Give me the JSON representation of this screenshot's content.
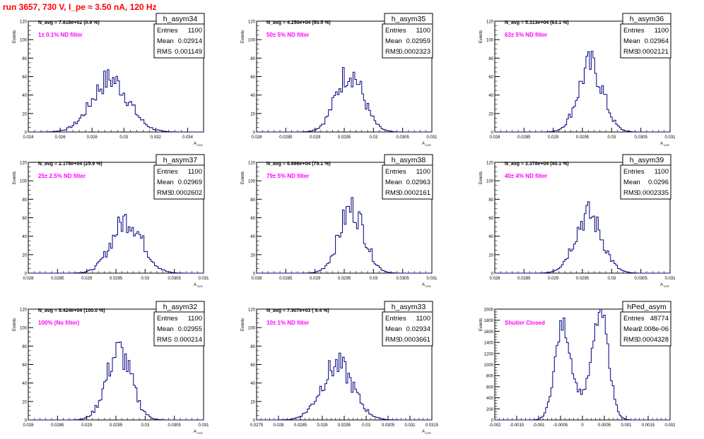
{
  "page_title": "run 3657,   730 V, I_pe ≈ 3.50 nA, 120 Hz",
  "colors": {
    "title": "#ff0000",
    "hist": "#000080",
    "annotation": "#ff00ff",
    "axis": "#000000"
  },
  "chart_data": [
    {
      "type": "histogram",
      "name": "h_asym34",
      "stats": {
        "entries_label": "Entries",
        "entries": "1100",
        "mean_label": "Mean",
        "mean": "0.02914",
        "rms_label": "RMS",
        "rms": "0.001149"
      },
      "n_avg_text": "N_avg = 7.818e+02 (0.9 %)",
      "annotation": "1± 0.1% ND filter",
      "ylabel": "Events",
      "xlabel": "A",
      "xlim": [
        0.024,
        0.035
      ],
      "ylim": [
        0,
        120
      ],
      "xticks": [
        0.024,
        0.026,
        0.028,
        0.03,
        0.032,
        0.034
      ],
      "xticklabels": [
        "0.024",
        "0.026",
        "0.028",
        "0.03",
        "0.032",
        "0.034"
      ],
      "yticks": [
        0,
        20,
        40,
        60,
        80,
        100,
        120
      ],
      "mean": 0.02914,
      "rms": 0.001149,
      "peak": 57,
      "shape": "gauss"
    },
    {
      "type": "histogram",
      "name": "h_asym35",
      "stats": {
        "entries_label": "Entries",
        "entries": "1100",
        "mean_label": "Mean",
        "mean": "0.02959",
        "rms_label": "RMS",
        "rms": "0.0002323"
      },
      "n_avg_text": "N_avg = 4.250e+04 (50.5 %)",
      "annotation": "50± 5% ND filter",
      "ylabel": "Events",
      "xlabel": "A",
      "xlim": [
        0.028,
        0.031
      ],
      "ylim": [
        0,
        120
      ],
      "xticks": [
        0.028,
        0.0285,
        0.029,
        0.0295,
        0.03,
        0.0305,
        0.031
      ],
      "xticklabels": [
        "0.028",
        "0.0285",
        "0.029",
        "0.0295",
        "0.03",
        "0.0305",
        "0.031"
      ],
      "yticks": [
        0,
        20,
        40,
        60,
        80,
        100,
        120
      ],
      "mean": 0.02959,
      "rms": 0.0002323,
      "peak": 65,
      "shape": "gauss"
    },
    {
      "type": "histogram",
      "name": "h_asym36",
      "stats": {
        "entries_label": "Entries",
        "entries": "1100",
        "mean_label": "Mean",
        "mean": "0.02964",
        "rms_label": "RMS",
        "rms": "0.0002121"
      },
      "n_avg_text": "N_avg = 5.313e+04 (63.1 %)",
      "annotation": "63± 5% ND filter",
      "ylabel": "Events",
      "xlabel": "A",
      "xlim": [
        0.028,
        0.031
      ],
      "ylim": [
        0,
        120
      ],
      "xticks": [
        0.028,
        0.0285,
        0.029,
        0.0295,
        0.03,
        0.0305,
        0.031
      ],
      "xticklabels": [
        "0.028",
        "0.0285",
        "0.029",
        "0.0295",
        "0.03",
        "0.0305",
        "0.031"
      ],
      "yticks": [
        0,
        20,
        40,
        60,
        80,
        100,
        120
      ],
      "mean": 0.02964,
      "rms": 0.0002121,
      "peak": 72,
      "shape": "gauss"
    },
    {
      "type": "histogram",
      "name": "h_asym37",
      "stats": {
        "entries_label": "Entries",
        "entries": "1100",
        "mean_label": "Mean",
        "mean": "0.02969",
        "rms_label": "RMS",
        "rms": "0.0002602"
      },
      "n_avg_text": "N_avg = 2.178e+04 (25.9 %)",
      "annotation": "25± 2.5% ND filter",
      "ylabel": "Events",
      "xlabel": "A",
      "xlim": [
        0.028,
        0.031
      ],
      "ylim": [
        0,
        120
      ],
      "xticks": [
        0.028,
        0.0285,
        0.029,
        0.0295,
        0.03,
        0.0305,
        0.031
      ],
      "xticklabels": [
        "0.028",
        "0.0285",
        "0.029",
        "0.0295",
        "0.03",
        "0.0305",
        "0.031"
      ],
      "yticks": [
        0,
        20,
        40,
        60,
        80,
        100,
        120
      ],
      "mean": 0.02969,
      "rms": 0.0002602,
      "peak": 58,
      "shape": "gauss"
    },
    {
      "type": "histogram",
      "name": "h_asym38",
      "stats": {
        "entries_label": "Entries",
        "entries": "1100",
        "mean_label": "Mean",
        "mean": "0.02963",
        "rms_label": "RMS",
        "rms": "0.0002161"
      },
      "n_avg_text": "N_avg = 6.666e+04 (79.1 %)",
      "annotation": "79± 5% ND filter",
      "ylabel": "Events",
      "xlabel": "A",
      "xlim": [
        0.028,
        0.031
      ],
      "ylim": [
        0,
        120
      ],
      "xticks": [
        0.028,
        0.0285,
        0.029,
        0.0295,
        0.03,
        0.0305,
        0.031
      ],
      "xticklabels": [
        "0.028",
        "0.0285",
        "0.029",
        "0.0295",
        "0.03",
        "0.0305",
        "0.031"
      ],
      "yticks": [
        0,
        20,
        40,
        60,
        80,
        100,
        120
      ],
      "mean": 0.02963,
      "rms": 0.0002161,
      "peak": 70,
      "shape": "gauss"
    },
    {
      "type": "histogram",
      "name": "h_asym39",
      "stats": {
        "entries_label": "Entries",
        "entries": "1100",
        "mean_label": "Mean",
        "mean": "0.0296",
        "rms_label": "RMS",
        "rms": "0.0002335"
      },
      "n_avg_text": "N_avg = 3.378e+04 (40.1 %)",
      "annotation": "40± 4% ND filter",
      "ylabel": "Events",
      "xlabel": "A",
      "xlim": [
        0.028,
        0.031
      ],
      "ylim": [
        0,
        120
      ],
      "xticks": [
        0.028,
        0.0285,
        0.029,
        0.0295,
        0.03,
        0.0305,
        0.031
      ],
      "xticklabels": [
        "0.028",
        "0.0285",
        "0.029",
        "0.0295",
        "0.03",
        "0.0305",
        "0.031"
      ],
      "yticks": [
        0,
        20,
        40,
        60,
        80,
        100,
        120
      ],
      "mean": 0.0296,
      "rms": 0.0002335,
      "peak": 63,
      "shape": "gauss"
    },
    {
      "type": "histogram",
      "name": "h_asym32",
      "stats": {
        "entries_label": "Entries",
        "entries": "1100",
        "mean_label": "Mean",
        "mean": "0.02955",
        "rms_label": "RMS",
        "rms": "0.000214"
      },
      "n_avg_text": "N_avg = 8.424e+04 (100.0 %)",
      "annotation": "100% (No filter)",
      "ylabel": "Events",
      "xlabel": "A",
      "xlim": [
        0.028,
        0.031
      ],
      "ylim": [
        0,
        120
      ],
      "xticks": [
        0.028,
        0.0285,
        0.029,
        0.0295,
        0.03,
        0.0305,
        0.031
      ],
      "xticklabels": [
        "0.028",
        "0.0285",
        "0.029",
        "0.0295",
        "0.03",
        "0.0305",
        "0.031"
      ],
      "yticks": [
        0,
        20,
        40,
        60,
        80,
        100,
        120
      ],
      "mean": 0.02955,
      "rms": 0.000214,
      "peak": 74,
      "shape": "gauss"
    },
    {
      "type": "histogram",
      "name": "h_asym33",
      "stats": {
        "entries_label": "Entries",
        "entries": "1100",
        "mean_label": "Mean",
        "mean": "0.02934",
        "rms_label": "RMS",
        "rms": "0.0003661"
      },
      "n_avg_text": "N_avg = 7.907e+03 ( 9.4 %)",
      "annotation": "10± 1% ND filter",
      "ylabel": "Events",
      "xlabel": "A",
      "xlim": [
        0.0275,
        0.0315
      ],
      "ylim": [
        0,
        120
      ],
      "xticks": [
        0.0275,
        0.028,
        0.0285,
        0.029,
        0.0295,
        0.03,
        0.0305,
        0.031,
        0.0315
      ],
      "xticklabels": [
        "0.0275",
        "0.028",
        "0.0285",
        "0.029",
        "0.0295",
        "0.03",
        "0.0305",
        "0.031",
        "0.0315"
      ],
      "yticks": [
        0,
        20,
        40,
        60,
        80,
        100,
        120
      ],
      "mean": 0.02934,
      "rms": 0.0003661,
      "peak": 59,
      "shape": "gauss"
    },
    {
      "type": "histogram",
      "name": "hPed_asym",
      "stats": {
        "entries_label": "Entries",
        "entries": "48774",
        "mean_label": "Mean",
        "mean": "2.008e-06",
        "rms_label": "RMS",
        "rms": "0.0004328"
      },
      "n_avg_text": "",
      "annotation": "Shutter Closed",
      "ylabel": "Events",
      "xlabel": "",
      "xlim": [
        -0.002,
        0.002
      ],
      "ylim": [
        0,
        2000
      ],
      "xticks": [
        -0.002,
        -0.0015,
        -0.001,
        -0.0005,
        0,
        0.0005,
        0.001,
        0.0015,
        0.002
      ],
      "xticklabels": [
        "-0.002",
        "-0.0015",
        "-0.001",
        "-0.0005",
        "0",
        "0.0005",
        "0.001",
        "0.0015",
        "0.002"
      ],
      "yticks": [
        0,
        200,
        400,
        600,
        800,
        1000,
        1200,
        1400,
        1600,
        1800,
        2000
      ],
      "mean": 2.008e-06,
      "rms": 0.0004328,
      "peak": 1900,
      "shape": "double",
      "peaks": [
        -0.00045,
        0.00042
      ],
      "sigma": 0.00018,
      "valley": 900
    }
  ]
}
